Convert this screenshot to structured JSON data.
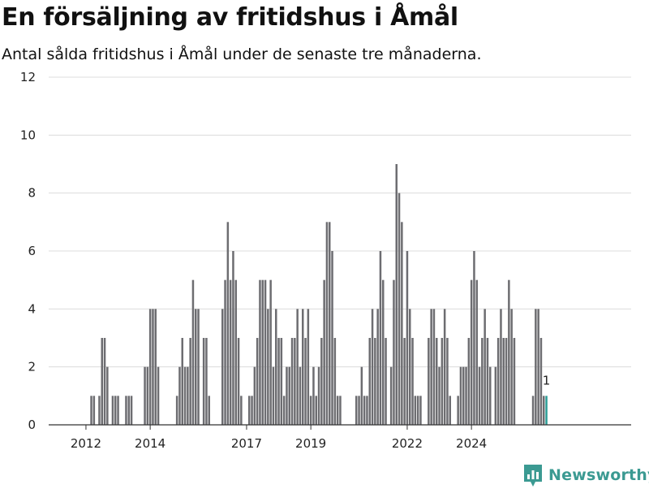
{
  "header": {
    "title": "En försäljning av fritidshus i Åmål",
    "subtitle": "Antal sålda fritidshus i Åmål under de senaste tre månaderna."
  },
  "brand": {
    "name": "Newsworthy",
    "color": "#3b9a92"
  },
  "chart_data": {
    "type": "bar",
    "title": "En försäljning av fritidshus i Åmål",
    "subtitle": "Antal sålda fritidshus i Åmål under de senaste tre månaderna.",
    "xlabel": "",
    "ylabel": "",
    "ylim": [
      0,
      12
    ],
    "yticks": [
      0,
      2,
      4,
      6,
      8,
      10,
      12
    ],
    "xticks": [
      "2012",
      "2014",
      "2017",
      "2019",
      "2022",
      "2024"
    ],
    "grid": true,
    "start_month": "2011-08",
    "bar_color": "#6d6d71",
    "highlight_color": "#2a9d96",
    "highlight_label": "1",
    "values": [
      0,
      0,
      0,
      0,
      0,
      0,
      0,
      1,
      1,
      0,
      1,
      3,
      3,
      2,
      0,
      1,
      1,
      1,
      0,
      0,
      1,
      1,
      1,
      0,
      0,
      0,
      0,
      2,
      2,
      4,
      4,
      4,
      2,
      0,
      0,
      0,
      0,
      0,
      0,
      1,
      2,
      3,
      2,
      2,
      3,
      5,
      4,
      4,
      0,
      3,
      3,
      1,
      0,
      0,
      0,
      0,
      4,
      5,
      7,
      5,
      6,
      5,
      3,
      1,
      0,
      0,
      1,
      1,
      2,
      3,
      5,
      5,
      5,
      4,
      5,
      2,
      4,
      3,
      3,
      1,
      2,
      2,
      3,
      3,
      4,
      2,
      4,
      3,
      4,
      1,
      2,
      1,
      2,
      3,
      5,
      7,
      7,
      6,
      3,
      1,
      1,
      0,
      0,
      0,
      0,
      0,
      1,
      1,
      2,
      1,
      1,
      3,
      4,
      3,
      4,
      6,
      5,
      3,
      0,
      2,
      5,
      9,
      8,
      7,
      3,
      6,
      4,
      3,
      1,
      1,
      1,
      0,
      0,
      3,
      4,
      4,
      3,
      2,
      3,
      4,
      3,
      1,
      0,
      0,
      1,
      2,
      2,
      2,
      3,
      5,
      6,
      5,
      2,
      3,
      4,
      3,
      2,
      0,
      2,
      3,
      4,
      3,
      3,
      5,
      4,
      3,
      0,
      0,
      0,
      0,
      0,
      0,
      1,
      4,
      4,
      3,
      1,
      1
    ]
  }
}
